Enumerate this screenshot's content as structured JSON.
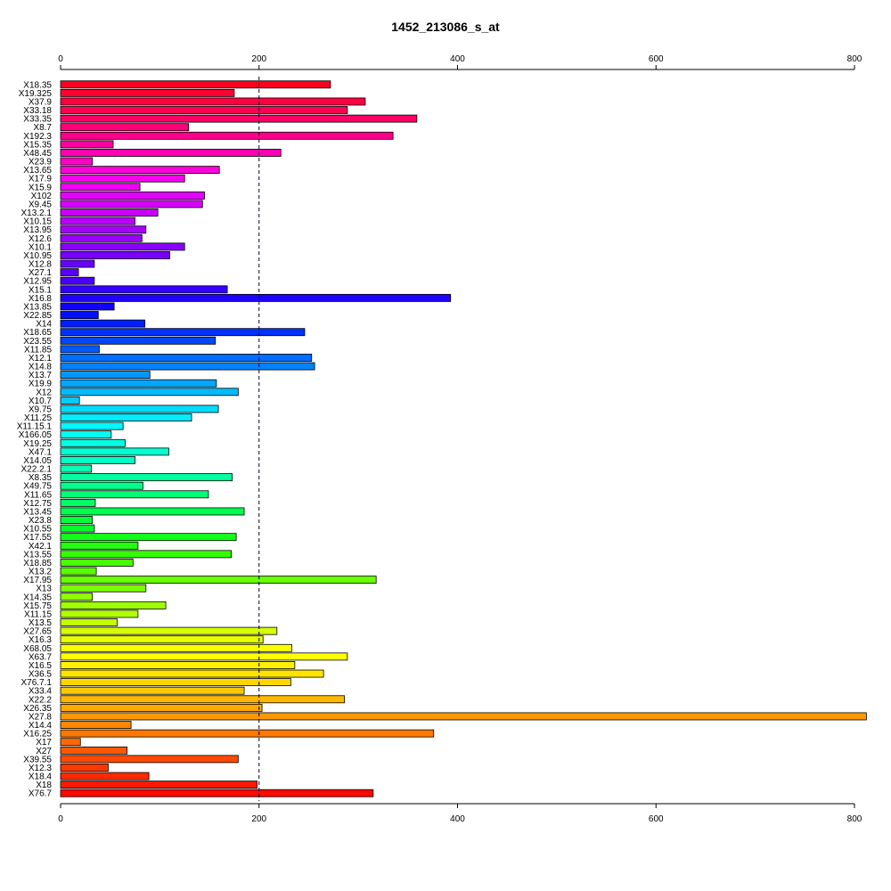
{
  "chart_data": {
    "type": "bar",
    "orientation": "horizontal",
    "title": "1452_213086_s_at",
    "xlabel": "",
    "ylabel": "",
    "xlim": [
      0,
      800
    ],
    "x_ticks": [
      "0",
      "200",
      "400",
      "600",
      "800"
    ],
    "reference_line": 200,
    "grid": false,
    "categories": [
      "X18.35",
      "X19.325",
      "X37.9",
      "X33.18",
      "X33.35",
      "X8.7",
      "X192.3",
      "X15.35",
      "X48.45",
      "X23.9",
      "X13.65",
      "X17.9",
      "X15.9",
      "X102",
      "X9.45",
      "X13.2.1",
      "X10.15",
      "X13.95",
      "X12.6",
      "X10.1",
      "X10.95",
      "X12.8",
      "X27.1",
      "X12.95",
      "X15.1",
      "X16.8",
      "X13.85",
      "X22.85",
      "X14",
      "X18.65",
      "X23.55",
      "X11.85",
      "X12.1",
      "X14.8",
      "X13.7",
      "X19.9",
      "X12",
      "X10.7",
      "X9.75",
      "X11.25",
      "X11.15.1",
      "X166.05",
      "X19.25",
      "X47.1",
      "X14.05",
      "X22.2.1",
      "X8.35",
      "X49.75",
      "X11.65",
      "X12.75",
      "X13.45",
      "X23.8",
      "X10.55",
      "X17.55",
      "X42.1",
      "X13.55",
      "X18.85",
      "X13.2",
      "X17.95",
      "X13",
      "X14.35",
      "X15.75",
      "X11.15",
      "X13.5",
      "X27.65",
      "X16.3",
      "X68.05",
      "X63.7",
      "X16.5",
      "X36.5",
      "X76.7.1",
      "X33.4",
      "X22.2",
      "X26.35",
      "X27.8",
      "X14.4",
      "X16.25",
      "X17",
      "X27",
      "X39.55",
      "X12.3",
      "X18.4",
      "X18",
      "X76.7"
    ],
    "values": [
      272,
      175,
      307,
      289,
      359,
      129,
      335,
      53,
      222,
      32,
      160,
      125,
      80,
      145,
      143,
      98,
      75,
      86,
      82,
      125,
      110,
      34,
      18,
      34,
      168,
      393,
      54,
      38,
      85,
      246,
      156,
      39,
      253,
      256,
      90,
      157,
      179,
      19,
      159,
      132,
      63,
      51,
      65,
      109,
      75,
      31,
      173,
      83,
      149,
      35,
      185,
      32,
      34,
      177,
      78,
      172,
      73,
      36,
      318,
      86,
      32,
      106,
      78,
      57,
      218,
      204,
      233,
      289,
      236,
      265,
      232,
      185,
      286,
      203,
      812,
      71,
      376,
      20,
      67,
      179,
      48,
      89,
      198,
      315
    ],
    "colors": [
      "#ff0020",
      "#ff0030",
      "#ff0040",
      "#ff0052",
      "#ff0064",
      "#ff0078",
      "#ff008c",
      "#ff00a0",
      "#ff00b4",
      "#ff00c8",
      "#ff00dc",
      "#f900ec",
      "#f000f5",
      "#e600ff",
      "#d800ff",
      "#c800ff",
      "#b800ff",
      "#a800ff",
      "#9800ff",
      "#8800ff",
      "#7800ff",
      "#6800ff",
      "#5800ff",
      "#4800ff",
      "#3400ff",
      "#2000ff",
      "#1000ff",
      "#0010ff",
      "#0020ff",
      "#0032ff",
      "#0046ff",
      "#005aff",
      "#006eff",
      "#0082ff",
      "#0096ff",
      "#00a8ff",
      "#00bcff",
      "#00ccff",
      "#00dcff",
      "#00ecff",
      "#00f8ff",
      "#00fff2",
      "#00ffe2",
      "#00ffd2",
      "#00ffc2",
      "#00ffb0",
      "#00ff9e",
      "#00ff8a",
      "#00ff76",
      "#00ff62",
      "#00ff4e",
      "#00ff3a",
      "#00ff28",
      "#12ff1a",
      "#24ff10",
      "#34ff00",
      "#46ff00",
      "#58ff00",
      "#6aff00",
      "#7cff00",
      "#8eff00",
      "#a0ff00",
      "#b2ff00",
      "#c4ff00",
      "#d6ff00",
      "#e8ff00",
      "#f8ff00",
      "#ffff00",
      "#fff000",
      "#ffe400",
      "#ffd600",
      "#ffc800",
      "#ffb800",
      "#ffa800",
      "#ff9800",
      "#ff8800",
      "#ff7800",
      "#ff6800",
      "#ff5800",
      "#ff4800",
      "#ff3800",
      "#ff2800",
      "#ff1800",
      "#ff0800"
    ]
  }
}
